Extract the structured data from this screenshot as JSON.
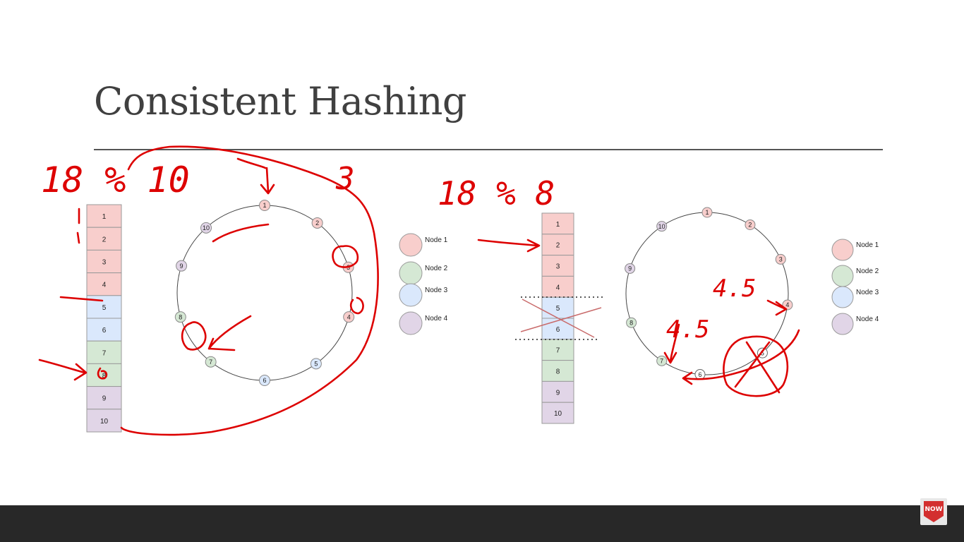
{
  "slide": {
    "title": "Consistent Hashing"
  },
  "palette": {
    "node_1": "#f8cecc",
    "node_2": "#d5e8d4",
    "node_3": "#dae8fc",
    "node_4": "#e1d5e7",
    "removed": "#ffffff",
    "ink": "#dd0000"
  },
  "legend": [
    {
      "key": "node_1",
      "label": "Node 1"
    },
    {
      "key": "node_2",
      "label": "Node 2"
    },
    {
      "key": "node_3",
      "label": "Node 3"
    },
    {
      "key": "node_4",
      "label": "Node 4"
    }
  ],
  "diagrams": [
    {
      "slots": [
        {
          "label": "1",
          "owner": "node_1"
        },
        {
          "label": "2",
          "owner": "node_1"
        },
        {
          "label": "3",
          "owner": "node_1"
        },
        {
          "label": "4",
          "owner": "node_1"
        },
        {
          "label": "5",
          "owner": "node_3"
        },
        {
          "label": "6",
          "owner": "node_3"
        },
        {
          "label": "7",
          "owner": "node_2"
        },
        {
          "label": "8",
          "owner": "node_2"
        },
        {
          "label": "9",
          "owner": "node_4"
        },
        {
          "label": "10",
          "owner": "node_4"
        }
      ],
      "ring": [
        {
          "label": "1",
          "owner": "node_1"
        },
        {
          "label": "2",
          "owner": "node_1"
        },
        {
          "label": "3",
          "owner": "node_1"
        },
        {
          "label": "4",
          "owner": "node_1"
        },
        {
          "label": "5",
          "owner": "node_3"
        },
        {
          "label": "6",
          "owner": "node_3"
        },
        {
          "label": "7",
          "owner": "node_2"
        },
        {
          "label": "8",
          "owner": "node_2"
        },
        {
          "label": "9",
          "owner": "node_4"
        },
        {
          "label": "10",
          "owner": "node_4"
        }
      ]
    },
    {
      "slots": [
        {
          "label": "1",
          "owner": "node_1"
        },
        {
          "label": "2",
          "owner": "node_1"
        },
        {
          "label": "3",
          "owner": "node_1"
        },
        {
          "label": "4",
          "owner": "node_1"
        },
        {
          "label": "5",
          "owner": "node_3"
        },
        {
          "label": "6",
          "owner": "node_3"
        },
        {
          "label": "7",
          "owner": "node_2"
        },
        {
          "label": "8",
          "owner": "node_2"
        },
        {
          "label": "9",
          "owner": "node_4"
        },
        {
          "label": "10",
          "owner": "node_4"
        }
      ],
      "ring": [
        {
          "label": "1",
          "owner": "node_1"
        },
        {
          "label": "2",
          "owner": "node_1"
        },
        {
          "label": "3",
          "owner": "node_1"
        },
        {
          "label": "4",
          "owner": "node_1"
        },
        {
          "label": "5",
          "owner": "removed"
        },
        {
          "label": "6",
          "owner": "removed"
        },
        {
          "label": "7",
          "owner": "node_2"
        },
        {
          "label": "8",
          "owner": "node_2"
        },
        {
          "label": "9",
          "owner": "node_4"
        },
        {
          "label": "10",
          "owner": "node_4"
        }
      ]
    }
  ],
  "handwriting": {
    "note_left": "18 % 10",
    "note_right": "18 % 8",
    "note_ring_3": "3",
    "note_ring_a": "4.5",
    "note_ring_b": "4.5"
  },
  "badge": {
    "label": "NOW"
  }
}
